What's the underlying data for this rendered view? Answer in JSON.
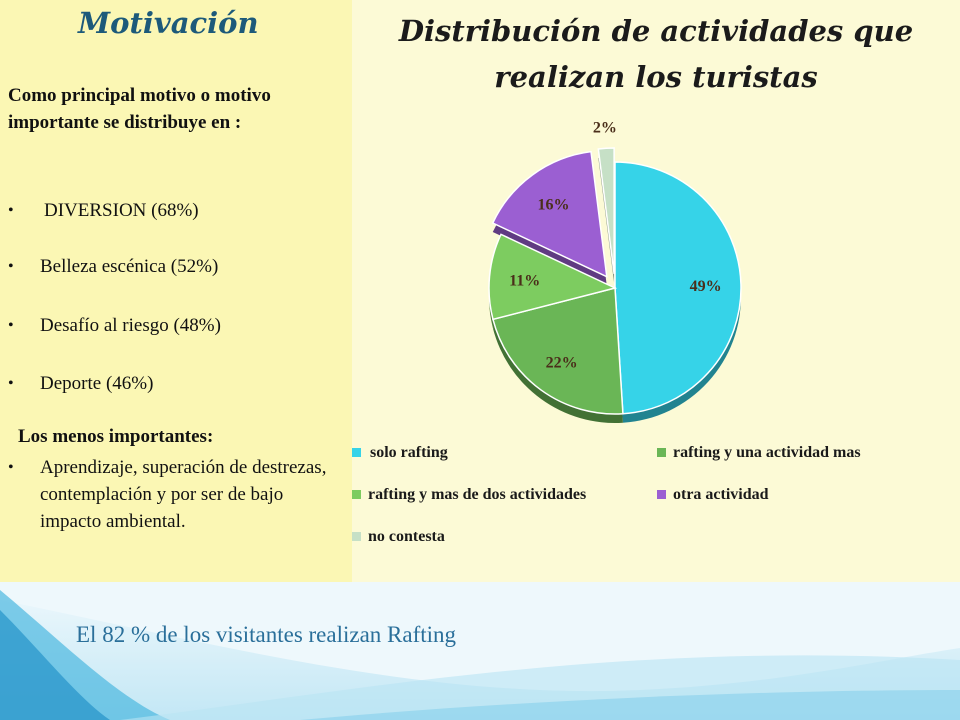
{
  "left": {
    "title": "Motivación",
    "intro": "Como principal motivo o motivo importante  se distribuye en :",
    "bullets": [
      "DIVERSION  (68%)",
      "Belleza escénica  (52%)",
      "Desafío al riesgo (48%)",
      "Deporte (46%)"
    ],
    "less_heading": "Los menos importantes:",
    "less_bullet": "Aprendizaje, superación de destrezas, contemplación y por ser de bajo impacto ambiental."
  },
  "footer": "El 82 % de los visitantes realizan Rafting",
  "colors": {
    "left_panel": "#fbf7b4",
    "right_panel": "#fcfad6",
    "title_blue": "#1d5a7a",
    "footer_blue": "#2a6f9a"
  },
  "chart_data": {
    "type": "pie",
    "title": "Distribución de actividades que realizan los turistas",
    "slices": [
      {
        "label": "solo rafting",
        "value": 49,
        "data_label": "49%",
        "color": "#36d3e8"
      },
      {
        "label": "rafting y una actividad mas",
        "value": 22,
        "data_label": "22%",
        "color": "#6ab656"
      },
      {
        "label": "rafting y mas de dos actividades",
        "value": 11,
        "data_label": "11%",
        "color": "#7dcc60"
      },
      {
        "label": "otra actividad",
        "value": 16,
        "data_label": "16%",
        "color": "#9b5fd2",
        "exploded": true
      },
      {
        "label": "no contesta",
        "value": 2,
        "data_label": "2%",
        "color": "#c6e0c6",
        "exploded": true
      }
    ],
    "legend_position": "bottom"
  }
}
